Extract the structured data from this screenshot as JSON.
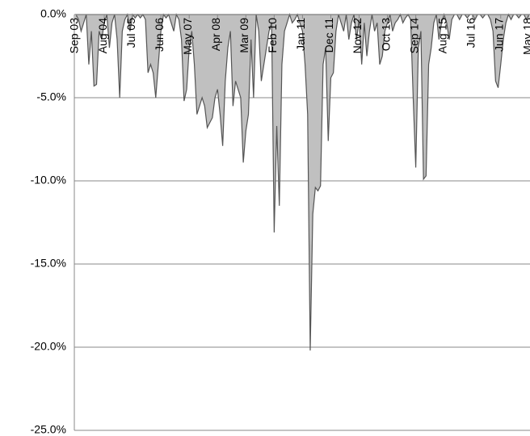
{
  "chart_data": {
    "type": "area",
    "categories": [
      "Sep 03",
      null,
      null,
      null,
      null,
      null,
      null,
      null,
      null,
      null,
      null,
      "Aug 04",
      null,
      null,
      null,
      null,
      null,
      null,
      null,
      null,
      null,
      null,
      "Jul 05",
      null,
      null,
      null,
      null,
      null,
      null,
      null,
      null,
      null,
      null,
      "Jun 06",
      null,
      null,
      null,
      null,
      null,
      null,
      null,
      null,
      null,
      null,
      "May 07",
      null,
      null,
      null,
      null,
      null,
      null,
      null,
      null,
      null,
      null,
      "Apr 08",
      null,
      null,
      null,
      null,
      null,
      null,
      null,
      null,
      null,
      null,
      "Mar 09",
      null,
      null,
      null,
      null,
      null,
      null,
      null,
      null,
      null,
      null,
      "Feb 10",
      null,
      null,
      null,
      null,
      null,
      null,
      null,
      null,
      null,
      null,
      "Jan 11",
      null,
      null,
      null,
      null,
      null,
      null,
      null,
      null,
      null,
      null,
      "Dec 11",
      null,
      null,
      null,
      null,
      null,
      null,
      null,
      null,
      null,
      null,
      "Nov 12",
      null,
      null,
      null,
      null,
      null,
      null,
      null,
      null,
      null,
      null,
      "Oct 13",
      null,
      null,
      null,
      null,
      null,
      null,
      null,
      null,
      null,
      null,
      "Sep 14",
      null,
      null,
      null,
      null,
      null,
      null,
      null,
      null,
      null,
      null,
      "Aug 15",
      null,
      null,
      null,
      null,
      null,
      null,
      null,
      null,
      null,
      null,
      "Jul 16",
      null,
      null,
      null,
      null,
      null,
      null,
      null,
      null,
      null,
      null,
      "Jun 17",
      null,
      null,
      null,
      null,
      null,
      null,
      null,
      null,
      null,
      null,
      "May 18",
      null
    ],
    "values": [
      0,
      -0.3,
      -1.0,
      -0.5,
      0,
      -3.0,
      -1.0,
      -4.3,
      -4.2,
      -1.0,
      -1.5,
      -0.5,
      0,
      -2.0,
      -0.5,
      0,
      -1.5,
      -5.0,
      -1.0,
      -0.3,
      0,
      -1.0,
      0,
      -0.2,
      0,
      -0.2,
      0,
      -0.3,
      -3.5,
      -3.0,
      -3.5,
      -5.0,
      -3.0,
      -1.0,
      0,
      -0.2,
      0,
      -0.5,
      -1.0,
      0,
      -0.3,
      -1.5,
      -5.2,
      -4.5,
      -2.0,
      -1.0,
      -3.0,
      -6.0,
      -5.5,
      -5.0,
      -5.5,
      -6.8,
      -6.5,
      -6.2,
      -5.0,
      -4.5,
      -6.0,
      -7.9,
      -4.0,
      -2.0,
      -1.0,
      -5.5,
      -4.0,
      -4.5,
      -5.0,
      -8.9,
      -7.0,
      -6.0,
      -1.5,
      -5.0,
      0,
      -1.0,
      -4.0,
      -3.0,
      -2.0,
      -1.0,
      -0.5,
      -13.1,
      -6.7,
      -11.5,
      -3.0,
      -1.0,
      -0.5,
      0,
      -0.5,
      -0.3,
      0,
      -0.5,
      -1.0,
      -3.0,
      -6.0,
      -20.2,
      -12.0,
      -10.4,
      -10.6,
      -10.3,
      -3.0,
      -2.0,
      -7.6,
      -3.8,
      -3.5,
      -1.0,
      0,
      -0.5,
      -1.0,
      0,
      -1.5,
      -0.5,
      0,
      -1.5,
      -0.3,
      -3.0,
      -0.5,
      -2.5,
      -1.0,
      0,
      -1.0,
      -0.5,
      -3.0,
      -2.5,
      -1.0,
      -0.5,
      0,
      -1.0,
      -0.5,
      -0.3,
      0,
      -0.5,
      -0.2,
      0,
      -0.3,
      -5.0,
      -9.2,
      -2.0,
      -1.0,
      -9.9,
      -9.7,
      -3.0,
      -2.0,
      -0.5,
      0,
      -1.5,
      -0.5,
      0,
      -0.5,
      -1.5,
      -0.3,
      0,
      0,
      -0.3,
      0,
      0,
      -0.2,
      0,
      0,
      -0.3,
      0,
      0,
      -0.2,
      0,
      0,
      -0.3,
      -1.0,
      -4.0,
      -4.4,
      -3.0,
      -1.5,
      -0.5,
      0,
      -0.3,
      0,
      0,
      -0.2,
      0,
      0,
      -0.3,
      0,
      0
    ],
    "color": "#c0c0c0",
    "line_color": "#555555",
    "ylim": [
      -25,
      0
    ],
    "yticks": [
      {
        "value": 0,
        "label": "0.0%"
      },
      {
        "value": -5,
        "label": "-5.0%"
      },
      {
        "value": -10,
        "label": "-10.0%"
      },
      {
        "value": -15,
        "label": "-15.0%"
      },
      {
        "value": -20,
        "label": "-20.0%"
      },
      {
        "value": -25,
        "label": "-25.0%"
      }
    ],
    "grid": true
  }
}
